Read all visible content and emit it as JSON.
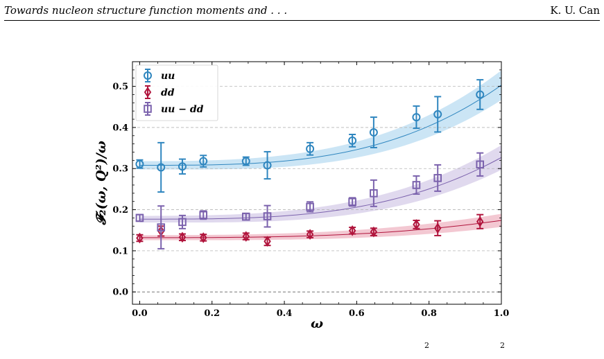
{
  "header": {
    "title": "Towards nucleon structure function moments and . . .",
    "author": "K. U. Can"
  },
  "caption_fragment": [
    "2",
    "2"
  ],
  "chart_data": {
    "type": "scatter",
    "xlabel": "ω",
    "ylabel": "𝓕₂(ω, Q²)/ω",
    "xlim": [
      -0.02,
      1.0
    ],
    "ylim": [
      -0.03,
      0.56
    ],
    "x_ticks": [
      "0.0",
      "0.2",
      "0.4",
      "0.6",
      "0.8",
      "1.0"
    ],
    "x_tick_values": [
      0.0,
      0.2,
      0.4,
      0.6,
      0.8,
      1.0
    ],
    "y_ticks": [
      "0.0",
      "0.1",
      "0.2",
      "0.3",
      "0.4",
      "0.5"
    ],
    "y_tick_values": [
      0.0,
      0.1,
      0.2,
      0.3,
      0.4,
      0.5
    ],
    "grid": "horizontal-dashed",
    "legend_position": "top-left",
    "series": [
      {
        "name": "uu",
        "marker": "circle",
        "color": "#2f86bf",
        "band_color": "#a9d3ee",
        "x": [
          0.0,
          0.059,
          0.118,
          0.176,
          0.294,
          0.353,
          0.471,
          0.588,
          0.647,
          0.765,
          0.824,
          0.941
        ],
        "y": [
          0.311,
          0.303,
          0.305,
          0.318,
          0.318,
          0.308,
          0.348,
          0.368,
          0.388,
          0.425,
          0.432,
          0.48
        ],
        "err": [
          0.01,
          0.06,
          0.018,
          0.014,
          0.01,
          0.033,
          0.015,
          0.015,
          0.037,
          0.027,
          0.043,
          0.036
        ],
        "fit": {
          "a": 0.308,
          "b": 0.195,
          "power": 3.2,
          "band": [
            0.01,
            0.036
          ]
        }
      },
      {
        "name": "dd",
        "marker": "diamond",
        "color": "#b0143c",
        "band_color": "#eba3b4",
        "x": [
          0.0,
          0.059,
          0.118,
          0.176,
          0.294,
          0.353,
          0.471,
          0.588,
          0.647,
          0.765,
          0.824,
          0.941
        ],
        "y": [
          0.131,
          0.148,
          0.133,
          0.132,
          0.135,
          0.123,
          0.14,
          0.149,
          0.146,
          0.164,
          0.155,
          0.171
        ],
        "err": [
          0.008,
          0.012,
          0.008,
          0.008,
          0.008,
          0.01,
          0.008,
          0.008,
          0.009,
          0.01,
          0.018,
          0.017
        ],
        "fit": {
          "a": 0.132,
          "b": 0.042,
          "power": 3.0,
          "band": [
            0.006,
            0.016
          ]
        }
      },
      {
        "name": "uu − dd",
        "marker": "square",
        "color": "#7b62ad",
        "band_color": "#cbbfe3",
        "x": [
          0.0,
          0.059,
          0.118,
          0.176,
          0.294,
          0.353,
          0.471,
          0.588,
          0.647,
          0.765,
          0.824,
          0.941
        ],
        "y": [
          0.18,
          0.157,
          0.17,
          0.187,
          0.183,
          0.184,
          0.207,
          0.219,
          0.24,
          0.26,
          0.277,
          0.31
        ],
        "err": [
          0.008,
          0.052,
          0.016,
          0.01,
          0.008,
          0.026,
          0.012,
          0.01,
          0.032,
          0.022,
          0.032,
          0.028
        ],
        "fit": {
          "a": 0.177,
          "b": 0.15,
          "power": 3.2,
          "band": [
            0.008,
            0.03
          ]
        }
      }
    ]
  }
}
